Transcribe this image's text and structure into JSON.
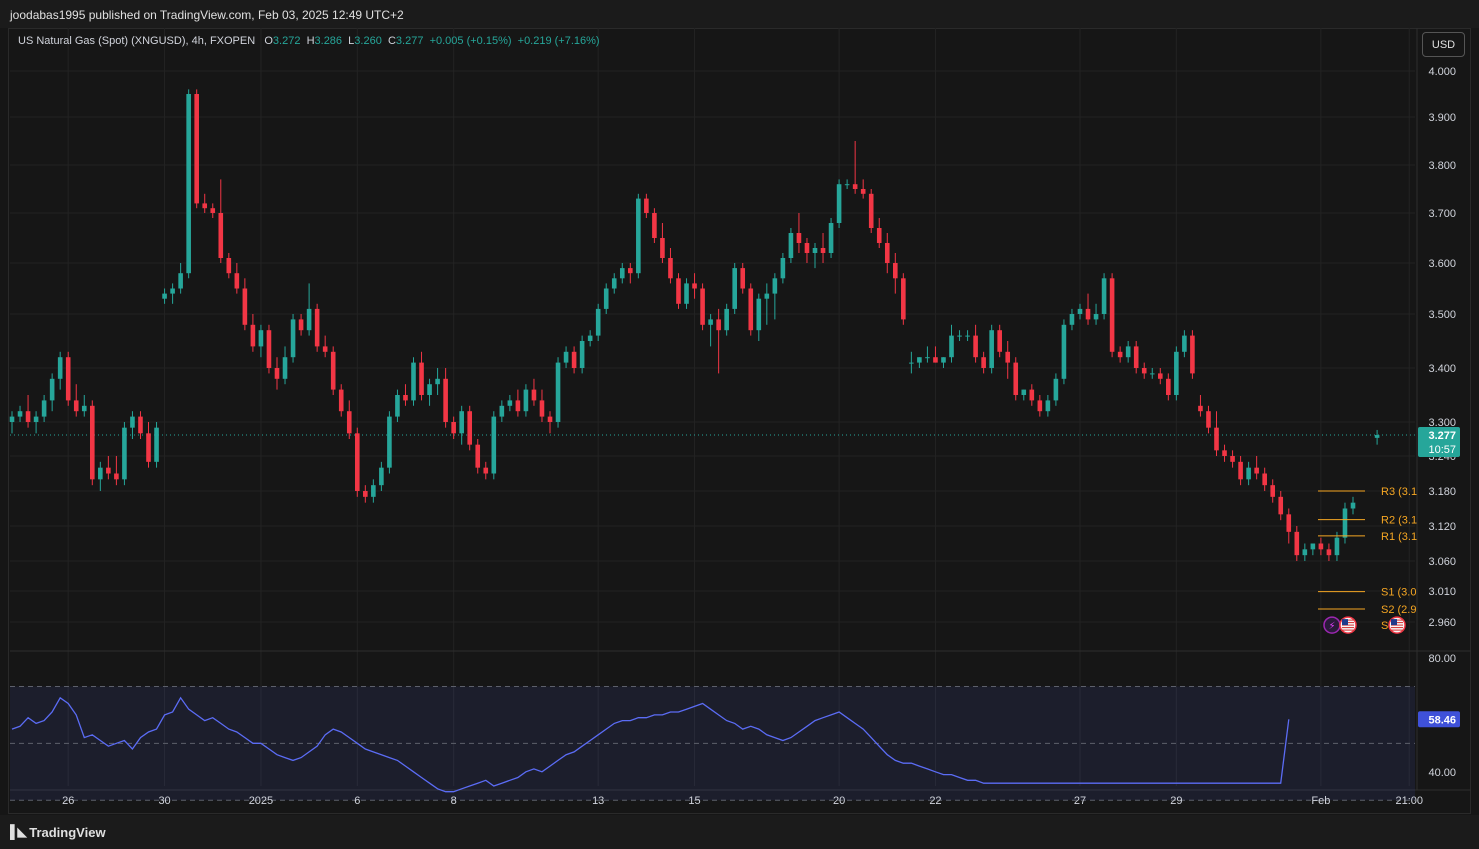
{
  "header": {
    "published_text": "joodabas1995 published on TradingView.com, Feb 03, 2025 12:49 UTC+2"
  },
  "legend": {
    "symbol": "US Natural Gas (Spot) (XNGUSD), 4h, FXOPEN",
    "o_label": "O",
    "o_value": "3.272",
    "h_label": "H",
    "h_value": "3.286",
    "l_label": "L",
    "l_value": "3.260",
    "c_label": "C",
    "c_value": "3.277",
    "change": "+0.005 (+0.15%)",
    "change2": "+0.219 (+7.16%)"
  },
  "currency_button": "USD",
  "footer": {
    "brand": "TradingView"
  },
  "colors": {
    "up": "#26a69a",
    "down": "#f23645",
    "pivot": "#f5a623",
    "rsi": "#5b6cf5",
    "background": "#161616"
  },
  "chart_data": [
    {
      "type": "candlestick",
      "title": "US Natural Gas (Spot) (XNGUSD), 4h, FXOPEN",
      "ylim": [
        2.93,
        4.03
      ],
      "y_ticks": [
        "4.000",
        "3.900",
        "3.800",
        "3.700",
        "3.600",
        "3.500",
        "3.400",
        "3.300",
        "3.240",
        "3.180",
        "3.120",
        "3.060",
        "3.010",
        "2.960"
      ],
      "x_labels": [
        {
          "i": 7,
          "t": "26"
        },
        {
          "i": 19,
          "t": "30"
        },
        {
          "i": 31,
          "t": "2025"
        },
        {
          "i": 43,
          "t": "6"
        },
        {
          "i": 55,
          "t": "8"
        },
        {
          "i": 73,
          "t": "13"
        },
        {
          "i": 85,
          "t": "15"
        },
        {
          "i": 103,
          "t": "20"
        },
        {
          "i": 115,
          "t": "22"
        },
        {
          "i": 133,
          "t": "27"
        },
        {
          "i": 145,
          "t": "29"
        },
        {
          "i": 163,
          "t": "Feb"
        },
        {
          "i": 174,
          "t": "21:00"
        }
      ],
      "current_price": "3.277",
      "countdown": "10:57",
      "ohlc": [
        [
          3.3,
          3.32,
          3.28,
          3.31
        ],
        [
          3.31,
          3.33,
          3.3,
          3.32
        ],
        [
          3.32,
          3.35,
          3.29,
          3.3
        ],
        [
          3.3,
          3.32,
          3.28,
          3.31
        ],
        [
          3.31,
          3.35,
          3.3,
          3.34
        ],
        [
          3.34,
          3.39,
          3.32,
          3.38
        ],
        [
          3.38,
          3.43,
          3.36,
          3.42
        ],
        [
          3.42,
          3.43,
          3.33,
          3.34
        ],
        [
          3.34,
          3.37,
          3.31,
          3.32
        ],
        [
          3.32,
          3.35,
          3.31,
          3.33
        ],
        [
          3.33,
          3.34,
          3.19,
          3.2
        ],
        [
          3.2,
          3.23,
          3.18,
          3.22
        ],
        [
          3.22,
          3.24,
          3.2,
          3.21
        ],
        [
          3.21,
          3.24,
          3.19,
          3.2
        ],
        [
          3.2,
          3.3,
          3.19,
          3.29
        ],
        [
          3.29,
          3.32,
          3.27,
          3.31
        ],
        [
          3.31,
          3.32,
          3.27,
          3.28
        ],
        [
          3.28,
          3.3,
          3.22,
          3.23
        ],
        [
          3.23,
          3.3,
          3.22,
          3.29
        ],
        [
          3.53,
          3.55,
          3.52,
          3.54
        ],
        [
          3.54,
          3.56,
          3.52,
          3.55
        ],
        [
          3.55,
          3.6,
          3.54,
          3.58
        ],
        [
          3.58,
          3.96,
          3.57,
          3.95
        ],
        [
          3.95,
          3.96,
          3.71,
          3.72
        ],
        [
          3.72,
          3.74,
          3.7,
          3.71
        ],
        [
          3.71,
          3.72,
          3.69,
          3.7
        ],
        [
          3.7,
          3.77,
          3.6,
          3.61
        ],
        [
          3.61,
          3.62,
          3.57,
          3.58
        ],
        [
          3.58,
          3.6,
          3.54,
          3.55
        ],
        [
          3.55,
          3.57,
          3.47,
          3.48
        ],
        [
          3.48,
          3.5,
          3.43,
          3.44
        ],
        [
          3.44,
          3.48,
          3.42,
          3.47
        ],
        [
          3.47,
          3.48,
          3.39,
          3.4
        ],
        [
          3.4,
          3.42,
          3.36,
          3.38
        ],
        [
          3.38,
          3.44,
          3.37,
          3.42
        ],
        [
          3.42,
          3.5,
          3.41,
          3.49
        ],
        [
          3.49,
          3.5,
          3.46,
          3.47
        ],
        [
          3.47,
          3.56,
          3.46,
          3.51
        ],
        [
          3.51,
          3.52,
          3.43,
          3.44
        ],
        [
          3.44,
          3.46,
          3.42,
          3.43
        ],
        [
          3.43,
          3.44,
          3.35,
          3.36
        ],
        [
          3.36,
          3.37,
          3.31,
          3.32
        ],
        [
          3.32,
          3.34,
          3.27,
          3.28
        ],
        [
          3.28,
          3.29,
          3.17,
          3.18
        ],
        [
          3.18,
          3.19,
          3.16,
          3.17
        ],
        [
          3.17,
          3.2,
          3.16,
          3.19
        ],
        [
          3.19,
          3.23,
          3.18,
          3.22
        ],
        [
          3.22,
          3.32,
          3.21,
          3.31
        ],
        [
          3.31,
          3.36,
          3.3,
          3.35
        ],
        [
          3.35,
          3.37,
          3.33,
          3.34
        ],
        [
          3.34,
          3.42,
          3.33,
          3.41
        ],
        [
          3.41,
          3.43,
          3.34,
          3.35
        ],
        [
          3.35,
          3.38,
          3.33,
          3.37
        ],
        [
          3.37,
          3.4,
          3.35,
          3.38
        ],
        [
          3.38,
          3.4,
          3.29,
          3.3
        ],
        [
          3.3,
          3.31,
          3.27,
          3.28
        ],
        [
          3.28,
          3.33,
          3.26,
          3.32
        ],
        [
          3.32,
          3.33,
          3.25,
          3.26
        ],
        [
          3.26,
          3.27,
          3.21,
          3.22
        ],
        [
          3.22,
          3.23,
          3.2,
          3.21
        ],
        [
          3.21,
          3.32,
          3.2,
          3.31
        ],
        [
          3.31,
          3.34,
          3.3,
          3.33
        ],
        [
          3.33,
          3.35,
          3.32,
          3.34
        ],
        [
          3.34,
          3.36,
          3.31,
          3.32
        ],
        [
          3.32,
          3.37,
          3.31,
          3.36
        ],
        [
          3.36,
          3.38,
          3.33,
          3.34
        ],
        [
          3.34,
          3.36,
          3.3,
          3.31
        ],
        [
          3.31,
          3.32,
          3.28,
          3.3
        ],
        [
          3.3,
          3.42,
          3.29,
          3.41
        ],
        [
          3.41,
          3.44,
          3.4,
          3.43
        ],
        [
          3.43,
          3.44,
          3.39,
          3.4
        ],
        [
          3.4,
          3.46,
          3.39,
          3.45
        ],
        [
          3.45,
          3.47,
          3.44,
          3.46
        ],
        [
          3.46,
          3.52,
          3.45,
          3.51
        ],
        [
          3.51,
          3.56,
          3.5,
          3.55
        ],
        [
          3.55,
          3.58,
          3.54,
          3.57
        ],
        [
          3.57,
          3.6,
          3.56,
          3.59
        ],
        [
          3.59,
          3.6,
          3.56,
          3.58
        ],
        [
          3.58,
          3.74,
          3.57,
          3.73
        ],
        [
          3.73,
          3.74,
          3.69,
          3.7
        ],
        [
          3.7,
          3.71,
          3.64,
          3.65
        ],
        [
          3.65,
          3.68,
          3.6,
          3.61
        ],
        [
          3.61,
          3.63,
          3.56,
          3.57
        ],
        [
          3.57,
          3.58,
          3.51,
          3.52
        ],
        [
          3.52,
          3.57,
          3.51,
          3.56
        ],
        [
          3.56,
          3.58,
          3.53,
          3.55
        ],
        [
          3.55,
          3.56,
          3.47,
          3.48
        ],
        [
          3.48,
          3.5,
          3.44,
          3.49
        ],
        [
          3.49,
          3.51,
          3.39,
          3.47
        ],
        [
          3.47,
          3.52,
          3.46,
          3.51
        ],
        [
          3.51,
          3.6,
          3.5,
          3.59
        ],
        [
          3.59,
          3.6,
          3.54,
          3.55
        ],
        [
          3.55,
          3.56,
          3.46,
          3.47
        ],
        [
          3.47,
          3.54,
          3.45,
          3.53
        ],
        [
          3.53,
          3.56,
          3.48,
          3.54
        ],
        [
          3.54,
          3.58,
          3.49,
          3.57
        ],
        [
          3.57,
          3.62,
          3.56,
          3.61
        ],
        [
          3.61,
          3.67,
          3.6,
          3.66
        ],
        [
          3.66,
          3.7,
          3.62,
          3.64
        ],
        [
          3.64,
          3.65,
          3.6,
          3.62
        ],
        [
          3.62,
          3.64,
          3.59,
          3.63
        ],
        [
          3.63,
          3.66,
          3.6,
          3.62
        ],
        [
          3.62,
          3.69,
          3.61,
          3.68
        ],
        [
          3.68,
          3.77,
          3.67,
          3.76
        ],
        [
          3.76,
          3.77,
          3.75,
          3.76
        ],
        [
          3.76,
          3.85,
          3.74,
          3.75
        ],
        [
          3.75,
          3.77,
          3.73,
          3.74
        ],
        [
          3.74,
          3.75,
          3.66,
          3.67
        ],
        [
          3.67,
          3.69,
          3.63,
          3.64
        ],
        [
          3.64,
          3.66,
          3.58,
          3.6
        ],
        [
          3.6,
          3.62,
          3.54,
          3.57
        ],
        [
          3.57,
          3.58,
          3.48,
          3.49
        ],
        [
          3.41,
          3.43,
          3.39,
          3.41
        ],
        [
          3.41,
          3.42,
          3.4,
          3.42
        ],
        [
          3.42,
          3.44,
          3.41,
          3.42
        ],
        [
          3.42,
          3.44,
          3.41,
          3.41
        ],
        [
          3.41,
          3.42,
          3.4,
          3.42
        ],
        [
          3.42,
          3.48,
          3.41,
          3.46
        ],
        [
          3.46,
          3.47,
          3.45,
          3.46
        ],
        [
          3.46,
          3.47,
          3.45,
          3.46
        ],
        [
          3.46,
          3.48,
          3.41,
          3.42
        ],
        [
          3.42,
          3.43,
          3.39,
          3.4
        ],
        [
          3.4,
          3.48,
          3.39,
          3.47
        ],
        [
          3.47,
          3.48,
          3.42,
          3.43
        ],
        [
          3.43,
          3.45,
          3.38,
          3.41
        ],
        [
          3.41,
          3.42,
          3.34,
          3.35
        ],
        [
          3.35,
          3.36,
          3.34,
          3.36
        ],
        [
          3.36,
          3.37,
          3.33,
          3.34
        ],
        [
          3.34,
          3.35,
          3.31,
          3.32
        ],
        [
          3.32,
          3.35,
          3.31,
          3.34
        ],
        [
          3.34,
          3.39,
          3.33,
          3.38
        ],
        [
          3.38,
          3.49,
          3.37,
          3.48
        ],
        [
          3.48,
          3.51,
          3.47,
          3.5
        ],
        [
          3.5,
          3.52,
          3.49,
          3.51
        ],
        [
          3.51,
          3.54,
          3.48,
          3.49
        ],
        [
          3.49,
          3.52,
          3.48,
          3.5
        ],
        [
          3.5,
          3.58,
          3.49,
          3.57
        ],
        [
          3.57,
          3.58,
          3.42,
          3.43
        ],
        [
          3.43,
          3.44,
          3.41,
          3.42
        ],
        [
          3.42,
          3.45,
          3.41,
          3.44
        ],
        [
          3.44,
          3.45,
          3.39,
          3.4
        ],
        [
          3.4,
          3.41,
          3.38,
          3.39
        ],
        [
          3.39,
          3.4,
          3.38,
          3.39
        ],
        [
          3.39,
          3.4,
          3.37,
          3.38
        ],
        [
          3.38,
          3.39,
          3.34,
          3.35
        ],
        [
          3.35,
          3.44,
          3.34,
          3.43
        ],
        [
          3.43,
          3.47,
          3.42,
          3.46
        ],
        [
          3.46,
          3.47,
          3.38,
          3.39
        ],
        [
          3.33,
          3.35,
          3.31,
          3.32
        ],
        [
          3.32,
          3.33,
          3.28,
          3.29
        ],
        [
          3.29,
          3.32,
          3.24,
          3.25
        ],
        [
          3.25,
          3.26,
          3.23,
          3.24
        ],
        [
          3.24,
          3.25,
          3.22,
          3.23
        ],
        [
          3.23,
          3.24,
          3.19,
          3.2
        ],
        [
          3.2,
          3.23,
          3.19,
          3.22
        ],
        [
          3.22,
          3.24,
          3.2,
          3.21
        ],
        [
          3.21,
          3.22,
          3.18,
          3.19
        ],
        [
          3.19,
          3.2,
          3.16,
          3.17
        ],
        [
          3.17,
          3.18,
          3.13,
          3.14
        ],
        [
          3.14,
          3.15,
          3.09,
          3.11
        ],
        [
          3.11,
          3.12,
          3.06,
          3.07
        ],
        [
          3.07,
          3.09,
          3.06,
          3.08
        ],
        [
          3.08,
          3.09,
          3.07,
          3.09
        ],
        [
          3.09,
          3.1,
          3.07,
          3.08
        ],
        [
          3.08,
          3.09,
          3.06,
          3.07
        ],
        [
          3.07,
          3.11,
          3.06,
          3.1
        ],
        [
          3.1,
          3.16,
          3.09,
          3.15
        ],
        [
          3.15,
          3.17,
          3.14,
          3.16
        ]
      ],
      "pivot_levels": [
        {
          "name": "R3",
          "label": "R3 (3.1",
          "value": 3.18
        },
        {
          "name": "R2",
          "label": "R2 (3.1",
          "value": 3.131
        },
        {
          "name": "R1",
          "label": "R1 (3.1",
          "value": 3.103
        },
        {
          "name": "S1",
          "label": "S1 (3.0",
          "value": 3.009
        },
        {
          "name": "S2",
          "label": "S2 (2.9",
          "value": 2.981
        },
        {
          "name": "S3",
          "label": "S",
          "value": 2.955
        }
      ]
    },
    {
      "type": "line",
      "title": "RSI",
      "ylim": [
        35,
        80
      ],
      "y_ticks": [
        "80.00",
        "40.00"
      ],
      "current_value": "58.46",
      "band": [
        30,
        70
      ],
      "mid": 50,
      "values": [
        55,
        56,
        59,
        57,
        58,
        61,
        66,
        64,
        60,
        52,
        53,
        51,
        49,
        50,
        51,
        48,
        52,
        54,
        55,
        60,
        61,
        66,
        62,
        60,
        58,
        59,
        57,
        55,
        54,
        52,
        50,
        50,
        48,
        46,
        45,
        44,
        45,
        47,
        49,
        53,
        55,
        54,
        52,
        50,
        48,
        47,
        46,
        45,
        44,
        42,
        40,
        38,
        36,
        34,
        33,
        33,
        34,
        35,
        36,
        37,
        35,
        36,
        37,
        38,
        40,
        41,
        40,
        42,
        44,
        46,
        47,
        49,
        51,
        53,
        55,
        57,
        58,
        58,
        59,
        59,
        60,
        60,
        61,
        61,
        62,
        63,
        64,
        62,
        60,
        58,
        57,
        55,
        56,
        55,
        53,
        52,
        51,
        52,
        54,
        56,
        58,
        59,
        60,
        61,
        59,
        57,
        55,
        52,
        49,
        46,
        44,
        43,
        43,
        42,
        41,
        40,
        39,
        39,
        38,
        37,
        37,
        36,
        36,
        36,
        36,
        36,
        36,
        36,
        36,
        36,
        36,
        36,
        36,
        36,
        36,
        36,
        36,
        36,
        36,
        36,
        36,
        36,
        36,
        36,
        36,
        36,
        36,
        36,
        36,
        36,
        36,
        36,
        36,
        36,
        36,
        36,
        36,
        36,
        36,
        58.46
      ]
    }
  ]
}
